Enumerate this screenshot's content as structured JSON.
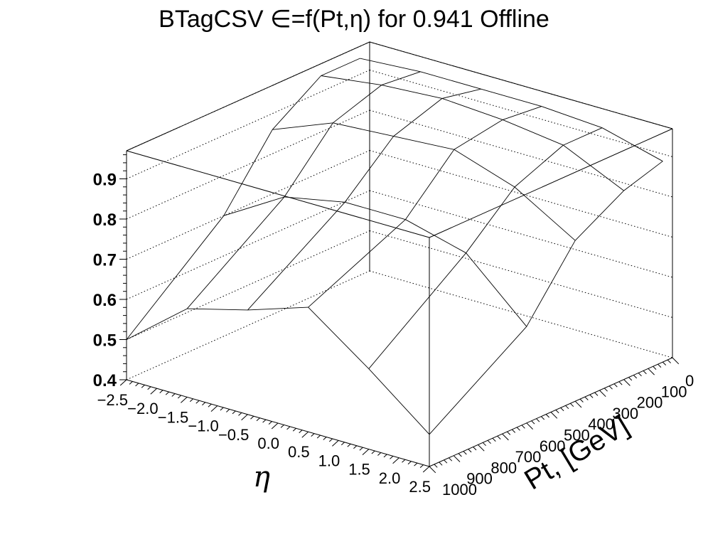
{
  "chart_data": {
    "type": "surface",
    "title": "BTagCSV ∈=f(Pt,η) for 0.941 Offline",
    "xlabel": "η",
    "ylabel": "Pt, [GeV]",
    "zlabel": "",
    "xlim": [
      -2.5,
      2.5
    ],
    "ylim": [
      0,
      1000
    ],
    "zlim": [
      0.4,
      0.97
    ],
    "x_ticks": [
      "−2.5",
      "−2.0",
      "−1.5",
      "−1.0",
      "−0.5",
      "0.0",
      "0.5",
      "1.0",
      "1.5",
      "2.0",
      "2.5"
    ],
    "y_ticks": [
      "0",
      "100",
      "200",
      "300",
      "400",
      "500",
      "600",
      "700",
      "800",
      "900",
      "1000"
    ],
    "z_ticks": [
      "0.4",
      "0.5",
      "0.6",
      "0.7",
      "0.8",
      "0.9"
    ],
    "eta_nodes": [
      -2.5,
      -1.5,
      -0.5,
      0.5,
      1.5,
      2.5
    ],
    "pt_nodes": [
      40,
      200,
      400,
      600,
      1000
    ],
    "values": [
      [
        0.94,
        0.95,
        0.95,
        0.95,
        0.94,
        0.9
      ],
      [
        0.94,
        0.96,
        0.97,
        0.96,
        0.94,
        0.87
      ],
      [
        0.86,
        0.92,
        0.93,
        0.94,
        0.89,
        0.8
      ],
      [
        0.7,
        0.79,
        0.82,
        0.82,
        0.78,
        0.64
      ],
      [
        0.5,
        0.62,
        0.66,
        0.71,
        0.6,
        0.48
      ]
    ],
    "grid": true
  }
}
